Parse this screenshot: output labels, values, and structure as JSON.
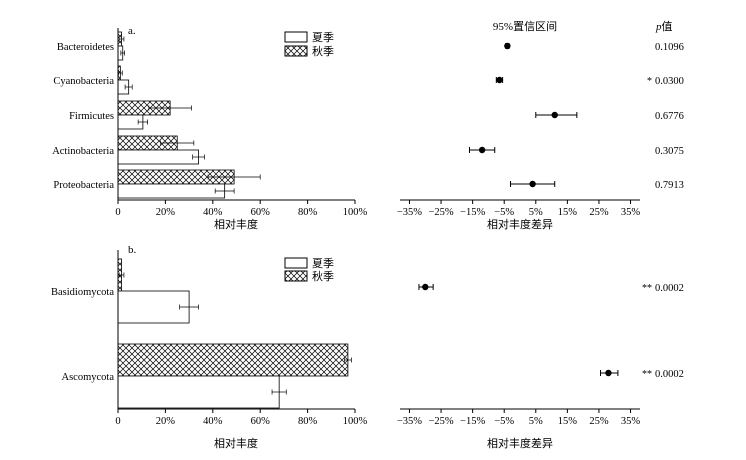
{
  "panel_a": {
    "label": "a.",
    "legend": [
      "夏季",
      "秋季"
    ],
    "xlabel_left": "相对丰度",
    "xlabel_right": "相对丰度差异",
    "ci_header": "95%置信区间",
    "p_header_italic": "p",
    "p_header_suffix": "值",
    "left_ticks": [
      "0",
      "20%",
      "40%",
      "60%",
      "80%",
      "100%"
    ],
    "right_ticks": [
      "−35%",
      "−25%",
      "−15%",
      "−5%",
      "5%",
      "15%",
      "25%",
      "35%"
    ]
  },
  "panel_b": {
    "label": "b.",
    "legend": [
      "夏季",
      "秋季"
    ],
    "xlabel_left": "相对丰度",
    "xlabel_right": "相对丰度差异",
    "left_ticks": [
      "0",
      "20%",
      "40%",
      "60%",
      "80%",
      "100%"
    ],
    "right_ticks": [
      "−35%",
      "−25%",
      "−15%",
      "−5%",
      "5%",
      "15%",
      "25%",
      "35%"
    ]
  },
  "chart_data": [
    {
      "type": "bar",
      "panel": "a",
      "categories": [
        "Bacteroidetes",
        "Cyanobacteria",
        "Firmicutes",
        "Actinobacteria",
        "Proteobacteria"
      ],
      "series": [
        {
          "name": "夏季",
          "values": [
            2,
            4.5,
            10.5,
            34,
            45
          ],
          "errors": [
            0.8,
            1.5,
            2,
            2.5,
            4
          ]
        },
        {
          "name": "秋季",
          "values": [
            1.5,
            1,
            22,
            25,
            49
          ],
          "errors": [
            1,
            0.8,
            9,
            7,
            11
          ]
        }
      ],
      "xlim": [
        0,
        100
      ],
      "xlabel": "相对丰度"
    },
    {
      "type": "scatter",
      "panel": "a",
      "categories": [
        "Bacteroidetes",
        "Cyanobacteria",
        "Firmicutes",
        "Actinobacteria",
        "Proteobacteria"
      ],
      "diff": [
        -4,
        -6.5,
        11,
        -12,
        4
      ],
      "ci_low": [
        -4.5,
        -7.5,
        5,
        -16,
        -3
      ],
      "ci_high": [
        -3.5,
        -5.5,
        18,
        -8,
        11
      ],
      "p_values": [
        "0.1096",
        "0.0300",
        "0.6776",
        "0.3075",
        "0.7913"
      ],
      "significance": [
        "",
        "*",
        "",
        "",
        ""
      ],
      "xlim": [
        -38,
        38
      ],
      "xlabel": "相对丰度差异"
    },
    {
      "type": "bar",
      "panel": "b",
      "categories": [
        "Basidiomycota",
        "Ascomycota"
      ],
      "series": [
        {
          "name": "夏季",
          "values": [
            30,
            68
          ],
          "errors": [
            4,
            3
          ]
        },
        {
          "name": "秋季",
          "values": [
            1.5,
            97
          ],
          "errors": [
            1,
            1.5
          ]
        }
      ],
      "xlim": [
        0,
        100
      ],
      "xlabel": "相对丰度"
    },
    {
      "type": "scatter",
      "panel": "b",
      "categories": [
        "Basidiomycota",
        "Ascomycota"
      ],
      "diff": [
        -30,
        28
      ],
      "ci_low": [
        -32,
        25.5
      ],
      "ci_high": [
        -27.5,
        31
      ],
      "p_values": [
        "0.0002",
        "0.0002"
      ],
      "significance": [
        "**",
        "**"
      ],
      "xlim": [
        -38,
        38
      ],
      "xlabel": "相对丰度差异"
    }
  ]
}
